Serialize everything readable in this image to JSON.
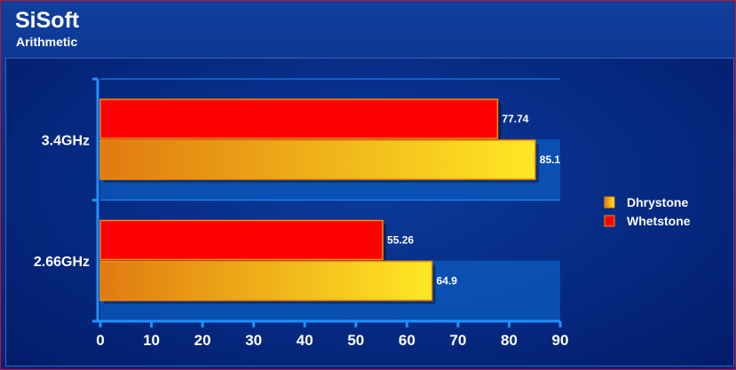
{
  "header": {
    "title": "SiSoft",
    "subtitle": "Arithmetic"
  },
  "colors": {
    "whetstone": "#ff0000",
    "dhrystone_start": "#e07a10",
    "dhrystone_end": "#ffe824",
    "axis": "#1e90ff",
    "band": "#0b56b8"
  },
  "chart_data": {
    "type": "bar",
    "orientation": "horizontal",
    "title": "SiSoft",
    "subtitle": "Arithmetic",
    "categories": [
      "3.4GHz",
      "2.66GHz"
    ],
    "series": [
      {
        "name": "Whetstone",
        "values": [
          77.74,
          55.26
        ]
      },
      {
        "name": "Dhrystone",
        "values": [
          85.1,
          64.9
        ]
      }
    ],
    "value_labels": [
      [
        "77.74",
        "55.26"
      ],
      [
        "85.1",
        "64.9"
      ]
    ],
    "xlim": [
      0,
      90
    ],
    "xticks": [
      "0",
      "10",
      "20",
      "30",
      "40",
      "50",
      "60",
      "70",
      "80",
      "90"
    ],
    "legend": [
      "Dhrystone",
      "Whetstone"
    ],
    "legend_position": "right",
    "grid": false
  }
}
